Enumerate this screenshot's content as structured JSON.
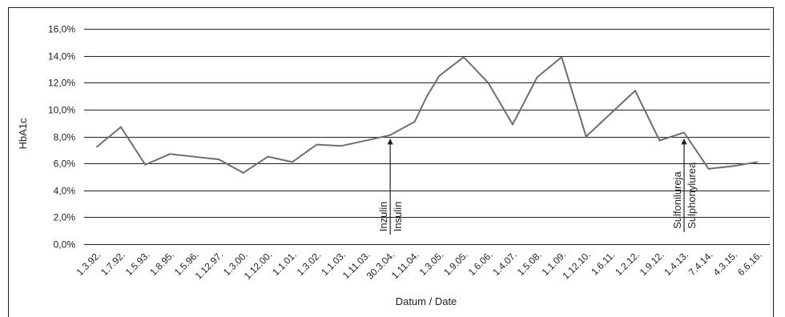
{
  "chart_data": {
    "type": "line",
    "title": "",
    "xlabel": "Datum / Date",
    "ylabel": "HbA1c",
    "ylim": [
      0,
      16
    ],
    "yticks": [
      "0,0%",
      "2,0%",
      "4,0%",
      "6,0%",
      "8,0%",
      "10,0%",
      "12,0%",
      "14,0%",
      "16,0%"
    ],
    "grid": "horizontal",
    "legend": "none",
    "categories": [
      "1.3.92.",
      "1.7.92.",
      "1.5.93.",
      "1.8.95.",
      "1.5.96.",
      "1.12.97.",
      "1.3.00.",
      "1.12.00.",
      "1.1.01.",
      "1.3.02.",
      "1.1.03.",
      "1.11.03.",
      "30.3.04.",
      "1.11.04.",
      "1.3.05.",
      "1.9.05.",
      "1.6.06.",
      "1.4.07.",
      "1.5.08.",
      "1.1.09.",
      "1.12.10.",
      "1.6.11.",
      "1.2.12.",
      "1.9.12.",
      "1.4.13.",
      "7.4.14.",
      "4.3.15.",
      "6.6.16."
    ],
    "tick_categories": [
      "1.3.92.",
      "1.7.92.",
      "1.5.93.",
      "1.8.95.",
      "1.5.96.",
      "1.12.97.",
      "1.3.00.",
      "1.12.00.",
      "1.1.01.",
      "1.3.02.",
      "1.1.03.",
      "1.11.03.",
      "30.3.04.",
      "1.11.04.",
      "1.3.05.",
      "1.9.05.",
      "1.6.06.",
      "1.4.07.",
      "1.5.08.",
      "1.1.09.",
      "1.12.10.",
      "1.6.11.",
      "1.2.12.",
      "1.9.12.",
      "1.4.13.",
      "7.4.14.",
      "4.3.15.",
      "6.6.16."
    ],
    "points": [
      {
        "x": "1.3.92.",
        "y": 7.2
      },
      {
        "x": "1.7.92.",
        "y": 8.7
      },
      {
        "x": "1.5.93.",
        "y": 5.9
      },
      {
        "x": "1.8.95.",
        "y": 6.7
      },
      {
        "x": "1.12.97.",
        "y": 6.3
      },
      {
        "x": "1.3.00.",
        "y": 5.3
      },
      {
        "x": "1.12.00.",
        "y": 6.5
      },
      {
        "x": "1.1.01.",
        "y": 6.1
      },
      {
        "x": "1.3.02.",
        "y": 7.4
      },
      {
        "x": "1.1.03.",
        "y": 7.3
      },
      {
        "x": "30.3.04.",
        "y": 8.1
      },
      {
        "x": "1.11.04.",
        "y": 9.1
      },
      {
        "x": "1.11.04.",
        "y": 11.0,
        "offset": 0.5
      },
      {
        "x": "1.3.05.",
        "y": 12.5
      },
      {
        "x": "1.9.05.",
        "y": 13.9
      },
      {
        "x": "1.6.06.",
        "y": 12.0
      },
      {
        "x": "1.4.07.",
        "y": 8.9
      },
      {
        "x": "1.5.08.",
        "y": 12.4
      },
      {
        "x": "1.1.09.",
        "y": 13.9
      },
      {
        "x": "1.12.10.",
        "y": 8.0
      },
      {
        "x": "1.2.12.",
        "y": 11.4
      },
      {
        "x": "1.9.12.",
        "y": 7.7
      },
      {
        "x": "1.4.13.",
        "y": 8.3
      },
      {
        "x": "7.4.14.",
        "y": 5.6
      },
      {
        "x": "4.3.15.",
        "y": 5.8
      },
      {
        "x": "6.6.16.",
        "y": 6.1
      }
    ],
    "series": [
      {
        "name": "",
        "color": "#6d6e71"
      }
    ],
    "annotations": [
      {
        "text_lines": [
          "Inzulin",
          "Insulin"
        ],
        "x": "30.3.04.",
        "arrow_from": 0.7,
        "arrow_to": 7.8
      },
      {
        "text_lines": [
          "Sulfonilureja",
          "Sulphonylurea"
        ],
        "x": "1.4.13.",
        "arrow_from": 0.9,
        "arrow_to": 7.8
      }
    ],
    "colors": {
      "line": "#6d6e71",
      "grid": "#231f20",
      "text": "#231f20",
      "frame": "#231f20"
    }
  }
}
